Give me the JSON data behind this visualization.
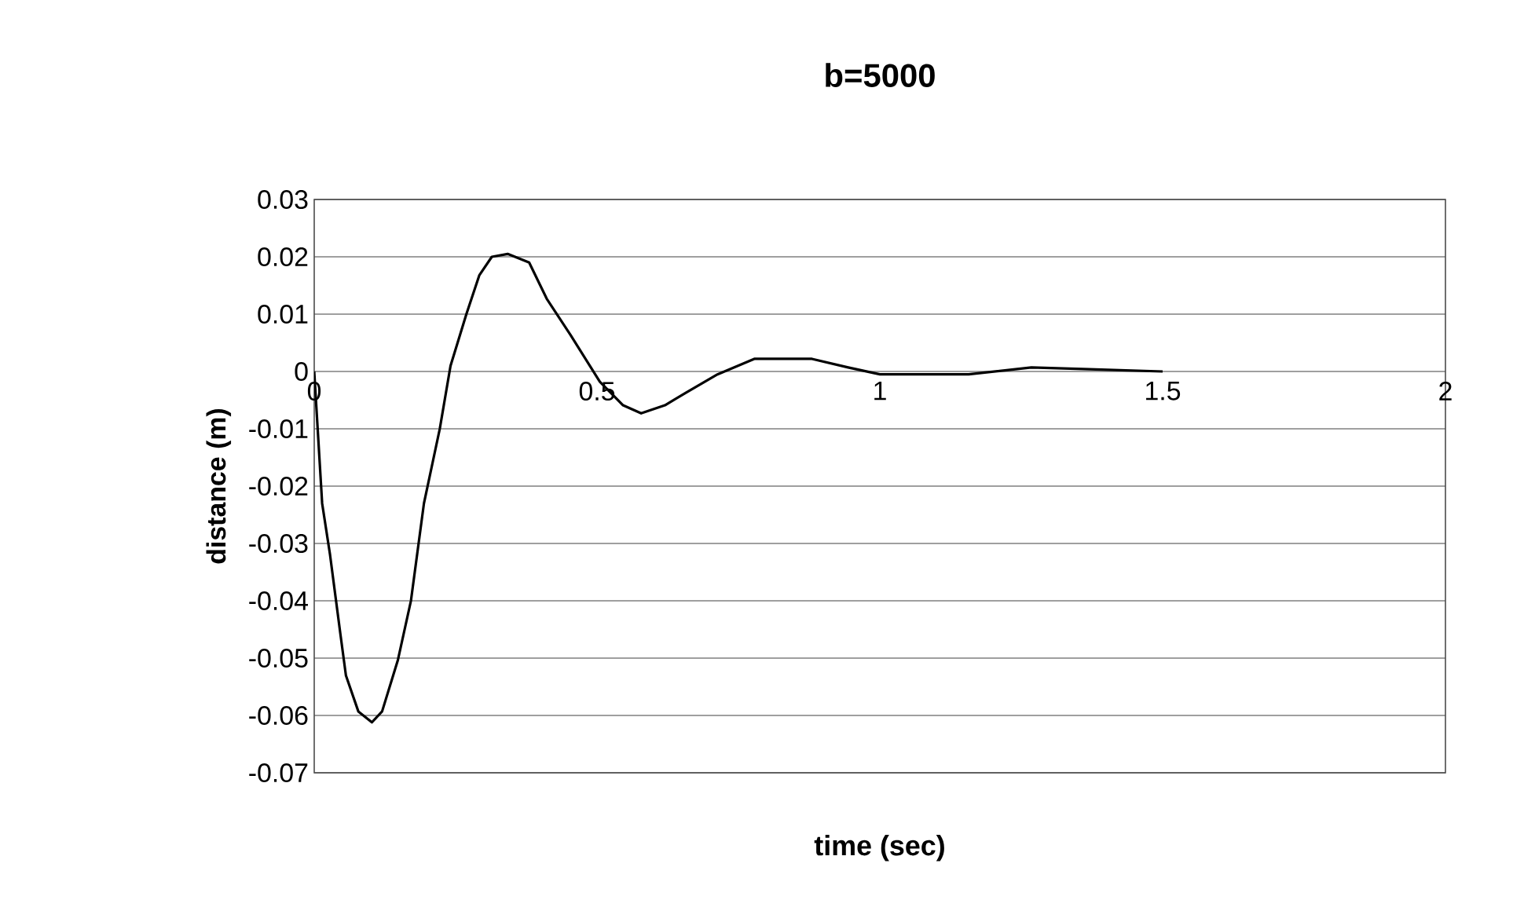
{
  "chart_data": {
    "type": "line",
    "title": "b=5000",
    "xlabel": "time (sec)",
    "ylabel": "distance (m)",
    "xlim": [
      0,
      2
    ],
    "xticks": [
      0,
      0.5,
      1,
      1.5,
      2
    ],
    "ylim": [
      -0.07,
      0.03
    ],
    "yticks": [
      -0.07,
      -0.06,
      -0.05,
      -0.04,
      -0.03,
      -0.02,
      -0.01,
      0,
      0.01,
      0.02,
      0.03
    ],
    "grid": "y",
    "marker": "none",
    "line_style": "solid",
    "series": [
      {
        "color": "#000000",
        "x": [
          0,
          0.014,
          0.028,
          0.046,
          0.056,
          0.078,
          0.102,
          0.12,
          0.148,
          0.171,
          0.194,
          0.222,
          0.241,
          0.269,
          0.292,
          0.314,
          0.342,
          0.38,
          0.411,
          0.453,
          0.505,
          0.546,
          0.578,
          0.62,
          0.657,
          0.713,
          0.778,
          0.88,
          0.944,
          1.0,
          1.157,
          1.268,
          1.37,
          1.5
        ],
        "values": [
          0,
          -0.023,
          -0.032,
          -0.0456,
          -0.053,
          -0.0593,
          -0.0612,
          -0.0593,
          -0.0503,
          -0.04,
          -0.023,
          -0.01,
          0.001,
          0.01,
          0.0168,
          0.02,
          0.0205,
          0.019,
          0.0127,
          0.0064,
          -0.0018,
          -0.0059,
          -0.0073,
          -0.0059,
          -0.0037,
          -0.0005,
          0.0022,
          0.0022,
          0.0007,
          -0.0005,
          -0.0005,
          0.0007,
          0.0004,
          0
        ]
      }
    ]
  }
}
